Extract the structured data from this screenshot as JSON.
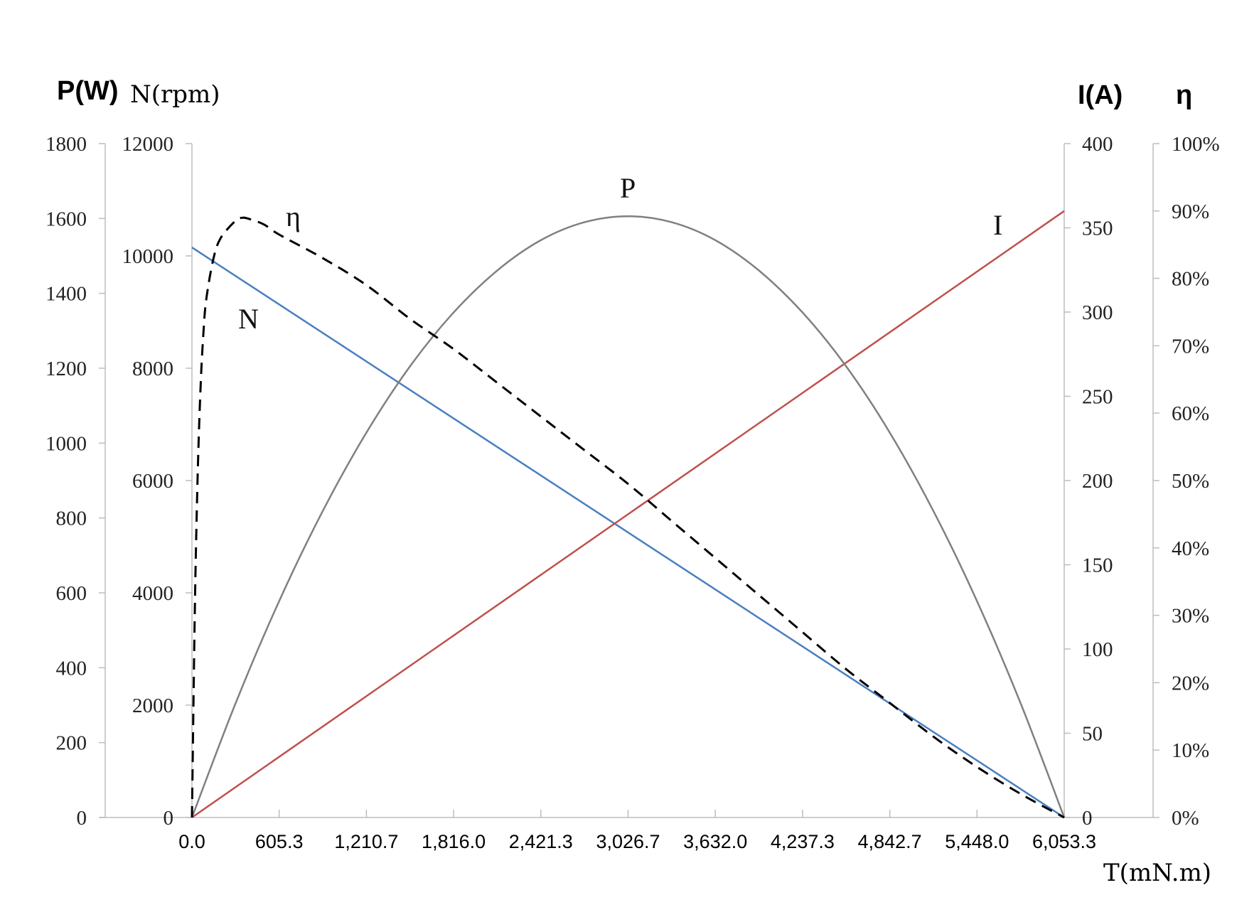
{
  "chart_data": {
    "type": "line",
    "axes": {
      "x": {
        "label": "T(mN.m)",
        "range": [
          0,
          6053.3
        ],
        "tick_values": [
          0,
          605.3,
          1210.7,
          1816.0,
          2421.3,
          3026.7,
          3632.0,
          4237.3,
          4842.7,
          5448.0,
          6053.3
        ],
        "tick_labels": [
          "0.0",
          "605.3",
          "1,210.7",
          "1,816.0",
          "2,421.3",
          "3,026.7",
          "3,632.0",
          "4,237.3",
          "4,842.7",
          "5,448.0",
          "6,053.3"
        ]
      },
      "p": {
        "label": "P(W)",
        "range": [
          0,
          1800
        ],
        "tick_labels": [
          "0",
          "200",
          "400",
          "600",
          "800",
          "1000",
          "1200",
          "1400",
          "1600",
          "1800"
        ]
      },
      "n": {
        "label": "N(rpm)",
        "range": [
          0,
          12000
        ],
        "tick_labels": [
          "0",
          "2000",
          "4000",
          "6000",
          "8000",
          "10000",
          "12000"
        ]
      },
      "i": {
        "label": "I(A)",
        "range": [
          0,
          400
        ],
        "tick_labels": [
          "0",
          "50",
          "100",
          "150",
          "200",
          "250",
          "300",
          "350",
          "400"
        ]
      },
      "eta": {
        "label": "η",
        "range": [
          0,
          1
        ],
        "tick_labels": [
          "0%",
          "10%",
          "20%",
          "30%",
          "40%",
          "50%",
          "60%",
          "70%",
          "80%",
          "90%",
          "100%"
        ]
      }
    },
    "series": [
      {
        "name": "N",
        "axis": "n",
        "color": "#4a7fc1",
        "style": "solid",
        "x": [
          0,
          6053.3
        ],
        "y": [
          10150,
          0
        ]
      },
      {
        "name": "I",
        "axis": "i",
        "color": "#c0504d",
        "style": "solid",
        "x": [
          0,
          6053.3
        ],
        "y": [
          0,
          360
        ]
      },
      {
        "name": "P",
        "axis": "p",
        "color": "#808080",
        "style": "solid",
        "x": [
          0,
          302.7,
          605.3,
          908.0,
          1210.7,
          1513.3,
          1816.0,
          2118.7,
          2421.3,
          2724.0,
          3026.7,
          3329.3,
          3632.0,
          3934.7,
          4237.3,
          4540.0,
          4842.7,
          5145.3,
          5448.0,
          5750.7,
          6053.3
        ],
        "y": [
          0,
          305,
          578,
          819,
          1028,
          1205,
          1349,
          1461,
          1542,
          1590,
          1606,
          1590,
          1542,
          1461,
          1349,
          1205,
          1028,
          819,
          578,
          305,
          0
        ]
      },
      {
        "name": "η",
        "axis": "eta",
        "color": "#000000",
        "style": "dashed",
        "x": [
          0,
          20,
          40,
          60,
          80,
          100,
          150,
          200,
          300,
          350,
          400,
          500,
          605.3,
          908.0,
          1210.7,
          1513.3,
          1816.0,
          2118.7,
          2421.3,
          2724.0,
          3026.7,
          3329.3,
          3632.0,
          3934.7,
          4237.3,
          4540.0,
          4842.7,
          5145.3,
          5448.0,
          5750.7,
          6053.3
        ],
        "y": [
          0,
          0.31,
          0.51,
          0.64,
          0.72,
          0.77,
          0.83,
          0.86,
          0.885,
          0.89,
          0.888,
          0.88,
          0.865,
          0.83,
          0.79,
          0.74,
          0.695,
          0.645,
          0.595,
          0.545,
          0.495,
          0.44,
          0.385,
          0.33,
          0.275,
          0.22,
          0.17,
          0.12,
          0.075,
          0.035,
          0
        ]
      }
    ],
    "curve_labels": {
      "N": "N",
      "I": "I",
      "P": "P",
      "eta": "η"
    },
    "grid": false,
    "legend": "none"
  }
}
